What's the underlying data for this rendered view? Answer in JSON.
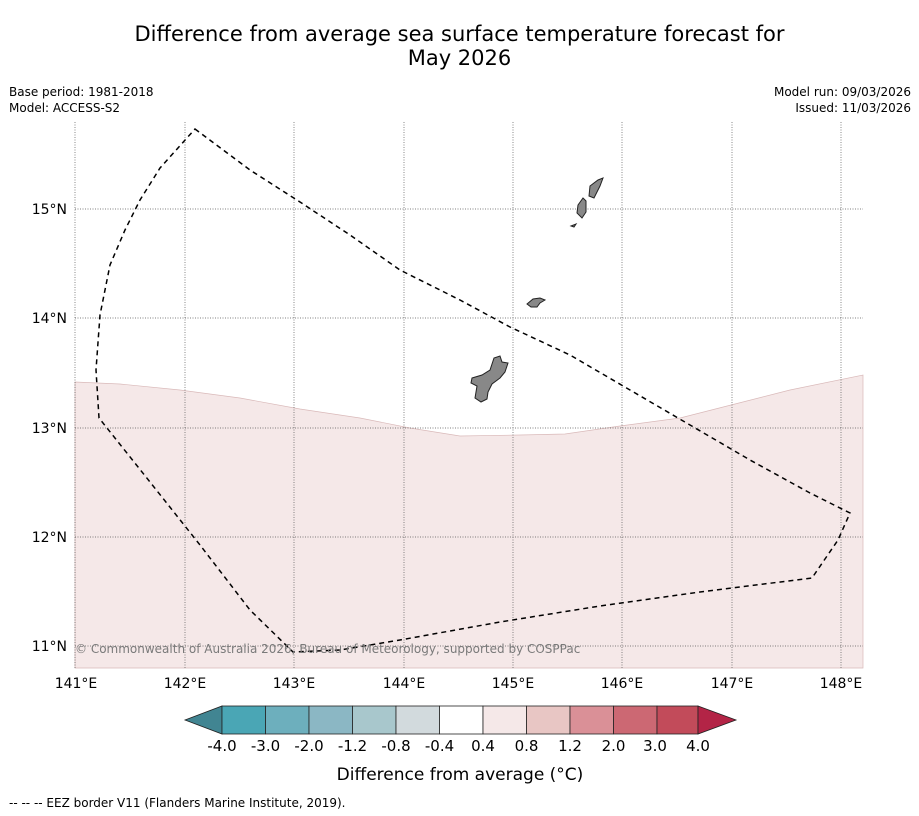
{
  "title_line1": "Difference from average sea surface temperature forecast for",
  "title_line2": "May 2026",
  "base_period": "Base period: 1981-2018",
  "model": "Model: ACCESS-S2",
  "model_run": "Model run: 09/03/2026",
  "issued": "Issued: 11/03/2026",
  "lat_labels": [
    "15°N",
    "14°N",
    "13°N",
    "12°N",
    "11°N"
  ],
  "lon_labels": [
    "141°E",
    "142°E",
    "143°E",
    "144°E",
    "145°E",
    "146°E",
    "147°E",
    "148°E"
  ],
  "copyright": "© Commonwealth of Australia 2026, Bureau of Meteorology, supported by COSPPac",
  "colorbar": {
    "title": "Difference from average (°C)",
    "labels": [
      "-4.0",
      "-3.0",
      "-2.0",
      "-1.2",
      "-0.8",
      "-0.4",
      "0.4",
      "0.8",
      "1.2",
      "2.0",
      "3.0",
      "4.0"
    ],
    "colors": [
      "#418592",
      "#4aa6b5",
      "#6dafbd",
      "#8bb7c4",
      "#a8c7cc",
      "#d2dadd",
      "#ffffff",
      "#f5e8e8",
      "#e8c6c4",
      "#da9097",
      "#cc6873",
      "#c24b5a",
      "#b32446"
    ]
  },
  "anomaly_fill_color": "#f5e8e8",
  "legend_footer": "--  --  -- EEZ border V11 (Flanders Marine Institute, 2019)."
}
